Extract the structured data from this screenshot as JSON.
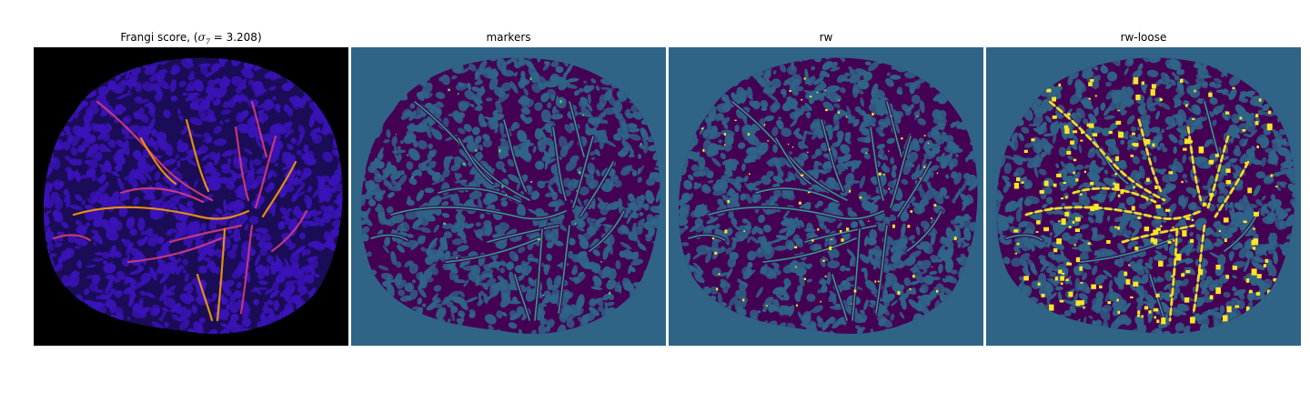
{
  "figure": {
    "panels": [
      {
        "id": "frangi",
        "title_prefix": "Frangi score, (",
        "title_math_symbol": "σ",
        "title_math_sub": "7",
        "title_math_value": " = 3.208",
        "title_suffix": ")",
        "colormap": "magma",
        "background": "#000000",
        "colors": {
          "tissue": "#1b0c57",
          "cell": "#3a13b8",
          "vessel": "#d43d7a",
          "vessel_hot": "#fb9b06"
        }
      },
      {
        "id": "markers",
        "title": "markers",
        "colormap": "viridis",
        "background": "#2f6487",
        "colors": {
          "tissue": "#440154",
          "cell": "#2f6487",
          "vessel": "#2f9f8c",
          "spot": "#5ac864"
        }
      },
      {
        "id": "rw",
        "title": "rw",
        "colormap": "viridis",
        "background": "#2f6487",
        "colors": {
          "tissue": "#440154",
          "cell": "#2f6487",
          "vessel": "#2f9f8c",
          "spot": "#fde725"
        }
      },
      {
        "id": "rw-loose",
        "title": "rw-loose",
        "colormap": "viridis",
        "background": "#2f6487",
        "colors": {
          "tissue": "#440154",
          "cell": "#2f6487",
          "vessel": "#2f9f8c",
          "spot": "#fde725"
        }
      }
    ]
  }
}
